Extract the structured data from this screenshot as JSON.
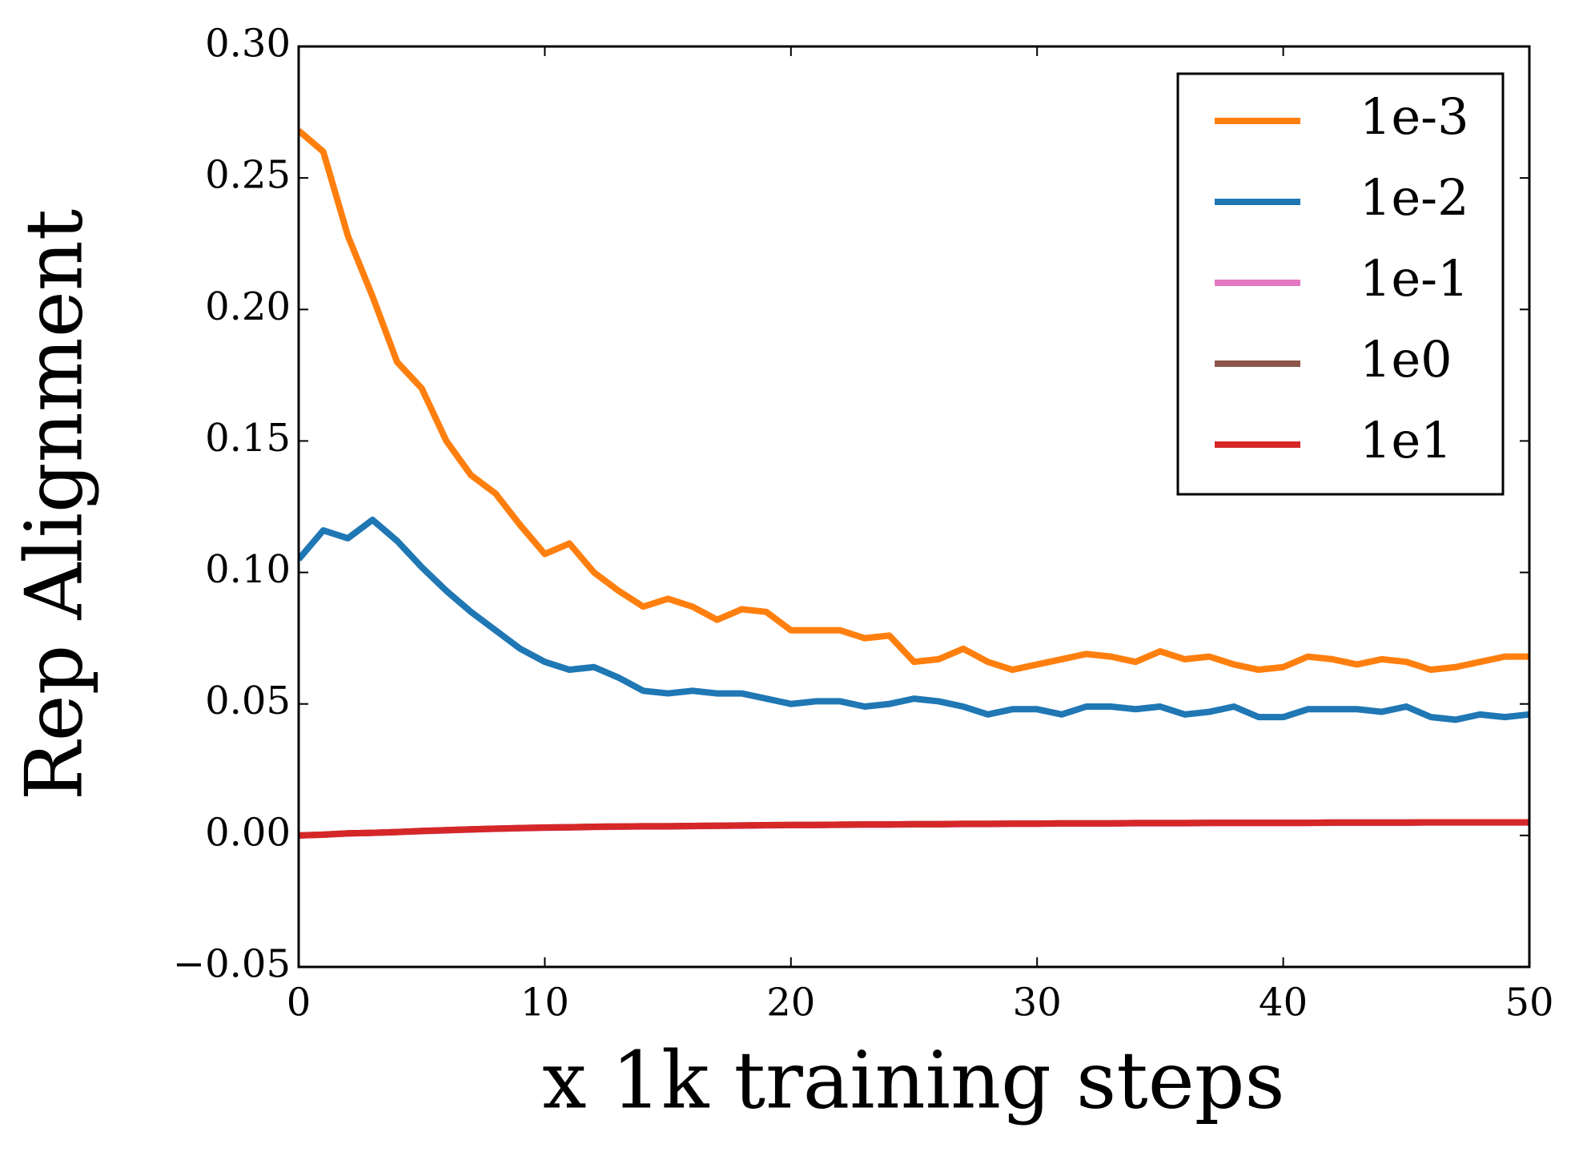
{
  "chart_data": {
    "type": "line",
    "xlabel": "x 1k training steps",
    "ylabel": "Rep Alignment",
    "x": [
      0,
      1,
      2,
      3,
      4,
      5,
      6,
      7,
      8,
      9,
      10,
      11,
      12,
      13,
      14,
      15,
      16,
      17,
      18,
      19,
      20,
      21,
      22,
      23,
      24,
      25,
      26,
      27,
      28,
      29,
      30,
      31,
      32,
      33,
      34,
      35,
      36,
      37,
      38,
      39,
      40,
      41,
      42,
      43,
      44,
      45,
      46,
      47,
      48,
      49,
      50
    ],
    "series": [
      {
        "name": "1e-3",
        "color": "#ff7f0e",
        "values": [
          0.268,
          0.26,
          0.228,
          0.205,
          0.18,
          0.17,
          0.15,
          0.137,
          0.13,
          0.118,
          0.107,
          0.111,
          0.1,
          0.093,
          0.087,
          0.09,
          0.087,
          0.082,
          0.086,
          0.085,
          0.078,
          0.078,
          0.078,
          0.075,
          0.076,
          0.066,
          0.067,
          0.071,
          0.066,
          0.063,
          0.065,
          0.067,
          0.069,
          0.068,
          0.066,
          0.07,
          0.067,
          0.068,
          0.065,
          0.063,
          0.064,
          0.068,
          0.067,
          0.065,
          0.067,
          0.066,
          0.063,
          0.064,
          0.066,
          0.068,
          0.068
        ]
      },
      {
        "name": "1e-2",
        "color": "#1f77b4",
        "values": [
          0.105,
          0.116,
          0.113,
          0.12,
          0.112,
          0.102,
          0.093,
          0.085,
          0.078,
          0.071,
          0.066,
          0.063,
          0.064,
          0.06,
          0.055,
          0.054,
          0.055,
          0.054,
          0.054,
          0.052,
          0.05,
          0.051,
          0.051,
          0.049,
          0.05,
          0.052,
          0.051,
          0.049,
          0.046,
          0.048,
          0.048,
          0.046,
          0.049,
          0.049,
          0.048,
          0.049,
          0.046,
          0.047,
          0.049,
          0.045,
          0.045,
          0.048,
          0.048,
          0.048,
          0.047,
          0.049,
          0.045,
          0.044,
          0.046,
          0.045,
          0.046
        ]
      },
      {
        "name": "1e-1",
        "color": "#e377c2",
        "values": [
          0,
          0.0003,
          0.0007,
          0.001,
          0.0013,
          0.0016,
          0.0019,
          0.0022,
          0.0025,
          0.0027,
          0.0029,
          0.003,
          0.0032,
          0.0033,
          0.0034,
          0.0034,
          0.0035,
          0.0036,
          0.0037,
          0.0038,
          0.0039,
          0.0039,
          0.004,
          0.0041,
          0.0041,
          0.0042,
          0.0042,
          0.0043,
          0.0043,
          0.0044,
          0.0044,
          0.0045,
          0.0045,
          0.0045,
          0.0046,
          0.0046,
          0.0046,
          0.0047,
          0.0047,
          0.0047,
          0.0047,
          0.0047,
          0.0048,
          0.0048,
          0.0048,
          0.0048,
          0.0049,
          0.0049,
          0.0049,
          0.0049,
          0.0049
        ]
      },
      {
        "name": "1e0",
        "color": "#8c564b",
        "values": [
          0,
          0.0003,
          0.0008,
          0.001,
          0.0013,
          0.0017,
          0.002,
          0.0023,
          0.0026,
          0.0028,
          0.003,
          0.0031,
          0.0033,
          0.0034,
          0.0035,
          0.0035,
          0.0036,
          0.0037,
          0.0038,
          0.0039,
          0.004,
          0.004,
          0.0041,
          0.0042,
          0.0042,
          0.0043,
          0.0043,
          0.0044,
          0.0044,
          0.0045,
          0.0045,
          0.0046,
          0.0046,
          0.0046,
          0.0047,
          0.0047,
          0.0047,
          0.0048,
          0.0048,
          0.0048,
          0.0048,
          0.0048,
          0.0049,
          0.0049,
          0.0049,
          0.0049,
          0.005,
          0.005,
          0.005,
          0.005,
          0.005
        ]
      },
      {
        "name": "1e1",
        "color": "#d62728",
        "values": [
          0,
          0.0003,
          0.0008,
          0.001,
          0.0013,
          0.0017,
          0.002,
          0.0023,
          0.0026,
          0.0028,
          0.003,
          0.0031,
          0.0033,
          0.0034,
          0.0035,
          0.0035,
          0.0036,
          0.0037,
          0.0038,
          0.0039,
          0.004,
          0.004,
          0.0041,
          0.0042,
          0.0042,
          0.0043,
          0.0043,
          0.0044,
          0.0044,
          0.0045,
          0.0045,
          0.0046,
          0.0046,
          0.0046,
          0.0047,
          0.0047,
          0.0047,
          0.0048,
          0.0048,
          0.0048,
          0.0048,
          0.0048,
          0.0049,
          0.0049,
          0.0049,
          0.0049,
          0.005,
          0.005,
          0.005,
          0.005,
          0.005
        ]
      }
    ],
    "xlim": [
      0,
      50
    ],
    "xticks": [
      0,
      10,
      20,
      30,
      40,
      50
    ],
    "ylim": [
      -0.05,
      0.3
    ],
    "yticks": [
      {
        "value": -0.05,
        "label": "−0.05"
      },
      {
        "value": 0,
        "label": "0.00"
      },
      {
        "value": 0.05,
        "label": "0.05"
      },
      {
        "value": 0.1,
        "label": "0.10"
      },
      {
        "value": 0.15,
        "label": "0.15"
      },
      {
        "value": 0.2,
        "label": "0.20"
      },
      {
        "value": 0.25,
        "label": "0.25"
      },
      {
        "value": 0.3,
        "label": "0.30"
      }
    ],
    "legend": "upper right",
    "grid": false
  }
}
